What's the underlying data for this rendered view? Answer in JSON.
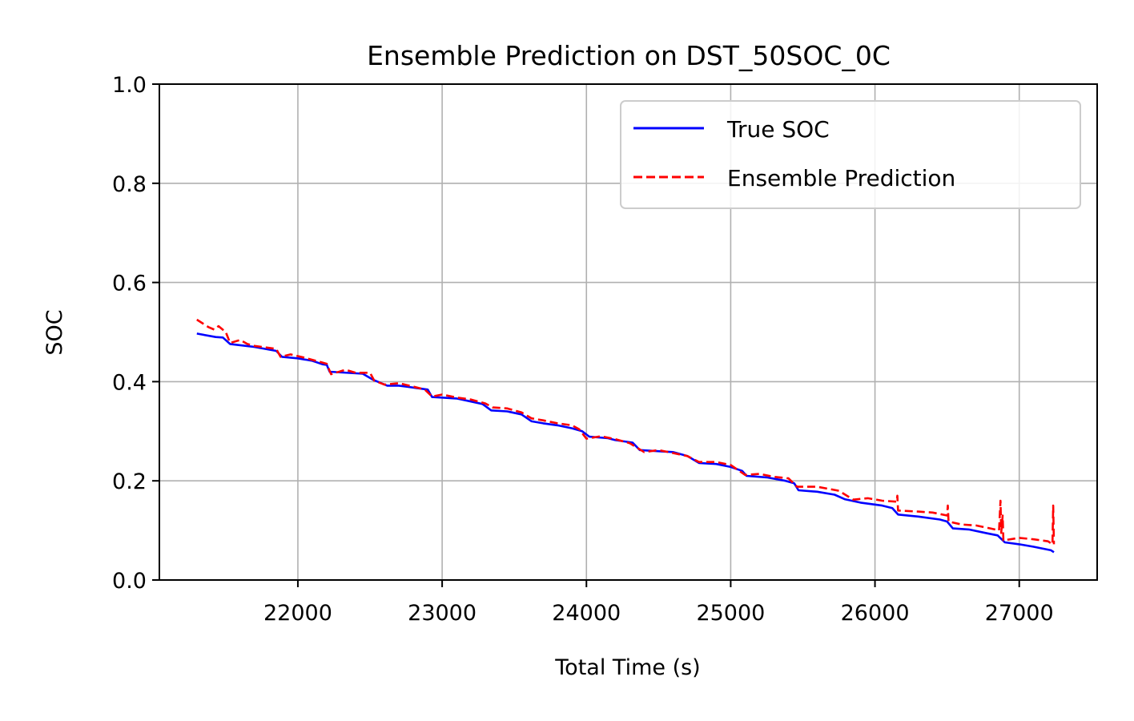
{
  "chart_data": {
    "type": "line",
    "title": "Ensemble Prediction on DST_50SOC_0C",
    "xlabel": "Total Time (s)",
    "ylabel": "SOC",
    "xlim": [
      21040,
      27540
    ],
    "ylim": [
      0.0,
      1.0
    ],
    "x_ticks": [
      22000,
      23000,
      24000,
      25000,
      26000,
      27000
    ],
    "x_tick_labels": [
      "22000",
      "23000",
      "24000",
      "25000",
      "26000",
      "27000"
    ],
    "y_ticks": [
      0.0,
      0.2,
      0.4,
      0.6,
      0.8,
      1.0
    ],
    "y_tick_labels": [
      "0.0",
      "0.2",
      "0.4",
      "0.6",
      "0.8",
      "1.0"
    ],
    "grid": true,
    "legend_position": "top-right",
    "series": [
      {
        "name": "True SOC",
        "color": "#0000ff",
        "style": "solid",
        "points": [
          [
            21300,
            0.497
          ],
          [
            21430,
            0.49
          ],
          [
            21480,
            0.489
          ],
          [
            21530,
            0.476
          ],
          [
            21700,
            0.47
          ],
          [
            21850,
            0.462
          ],
          [
            21890,
            0.45
          ],
          [
            22000,
            0.447
          ],
          [
            22100,
            0.442
          ],
          [
            22170,
            0.435
          ],
          [
            22200,
            0.434
          ],
          [
            22220,
            0.42
          ],
          [
            22450,
            0.416
          ],
          [
            22520,
            0.404
          ],
          [
            22620,
            0.392
          ],
          [
            22700,
            0.392
          ],
          [
            22800,
            0.388
          ],
          [
            22900,
            0.384
          ],
          [
            22930,
            0.369
          ],
          [
            23100,
            0.366
          ],
          [
            23200,
            0.36
          ],
          [
            23280,
            0.355
          ],
          [
            23340,
            0.342
          ],
          [
            23450,
            0.34
          ],
          [
            23550,
            0.334
          ],
          [
            23620,
            0.32
          ],
          [
            23700,
            0.316
          ],
          [
            23800,
            0.312
          ],
          [
            23900,
            0.306
          ],
          [
            23970,
            0.3
          ],
          [
            24020,
            0.289
          ],
          [
            24150,
            0.286
          ],
          [
            24200,
            0.282
          ],
          [
            24320,
            0.277
          ],
          [
            24370,
            0.262
          ],
          [
            24600,
            0.258
          ],
          [
            24700,
            0.25
          ],
          [
            24780,
            0.236
          ],
          [
            24900,
            0.234
          ],
          [
            25000,
            0.228
          ],
          [
            25080,
            0.22
          ],
          [
            25110,
            0.21
          ],
          [
            25250,
            0.207
          ],
          [
            25380,
            0.2
          ],
          [
            25440,
            0.195
          ],
          [
            25470,
            0.181
          ],
          [
            25600,
            0.178
          ],
          [
            25720,
            0.172
          ],
          [
            25790,
            0.163
          ],
          [
            25900,
            0.156
          ],
          [
            26050,
            0.15
          ],
          [
            26120,
            0.145
          ],
          [
            26160,
            0.132
          ],
          [
            26300,
            0.128
          ],
          [
            26450,
            0.122
          ],
          [
            26500,
            0.118
          ],
          [
            26540,
            0.104
          ],
          [
            26650,
            0.102
          ],
          [
            26780,
            0.094
          ],
          [
            26850,
            0.09
          ],
          [
            26900,
            0.076
          ],
          [
            27000,
            0.072
          ],
          [
            27100,
            0.067
          ],
          [
            27220,
            0.06
          ],
          [
            27240,
            0.056
          ]
        ]
      },
      {
        "name": "Ensemble Prediction",
        "color": "#ff0000",
        "style": "dashed",
        "points": [
          [
            21300,
            0.525
          ],
          [
            21380,
            0.51
          ],
          [
            21420,
            0.505
          ],
          [
            21450,
            0.512
          ],
          [
            21500,
            0.5
          ],
          [
            21530,
            0.478
          ],
          [
            21600,
            0.484
          ],
          [
            21650,
            0.476
          ],
          [
            21700,
            0.472
          ],
          [
            21850,
            0.466
          ],
          [
            21880,
            0.45
          ],
          [
            21950,
            0.455
          ],
          [
            22050,
            0.448
          ],
          [
            22150,
            0.44
          ],
          [
            22200,
            0.436
          ],
          [
            22230,
            0.415
          ],
          [
            22330,
            0.424
          ],
          [
            22400,
            0.418
          ],
          [
            22500,
            0.418
          ],
          [
            22530,
            0.402
          ],
          [
            22600,
            0.394
          ],
          [
            22700,
            0.397
          ],
          [
            22800,
            0.39
          ],
          [
            22880,
            0.384
          ],
          [
            22930,
            0.37
          ],
          [
            23000,
            0.374
          ],
          [
            23100,
            0.368
          ],
          [
            23200,
            0.364
          ],
          [
            23300,
            0.356
          ],
          [
            23350,
            0.348
          ],
          [
            23450,
            0.346
          ],
          [
            23550,
            0.338
          ],
          [
            23620,
            0.326
          ],
          [
            23700,
            0.322
          ],
          [
            23800,
            0.316
          ],
          [
            23900,
            0.312
          ],
          [
            23950,
            0.304
          ],
          [
            24000,
            0.285
          ],
          [
            24100,
            0.29
          ],
          [
            24200,
            0.284
          ],
          [
            24300,
            0.276
          ],
          [
            24400,
            0.258
          ],
          [
            24500,
            0.262
          ],
          [
            24600,
            0.256
          ],
          [
            24700,
            0.25
          ],
          [
            24780,
            0.238
          ],
          [
            24900,
            0.238
          ],
          [
            25000,
            0.232
          ],
          [
            25100,
            0.212
          ],
          [
            25200,
            0.214
          ],
          [
            25300,
            0.208
          ],
          [
            25400,
            0.205
          ],
          [
            25460,
            0.188
          ],
          [
            25600,
            0.188
          ],
          [
            25750,
            0.18
          ],
          [
            25850,
            0.162
          ],
          [
            25950,
            0.165
          ],
          [
            26050,
            0.16
          ],
          [
            26150,
            0.158
          ],
          [
            26155,
            0.17
          ],
          [
            26160,
            0.14
          ],
          [
            26300,
            0.138
          ],
          [
            26400,
            0.136
          ],
          [
            26500,
            0.13
          ],
          [
            26505,
            0.15
          ],
          [
            26510,
            0.118
          ],
          [
            26600,
            0.112
          ],
          [
            26700,
            0.11
          ],
          [
            26800,
            0.104
          ],
          [
            26860,
            0.1
          ],
          [
            26870,
            0.16
          ],
          [
            26875,
            0.095
          ],
          [
            26885,
            0.13
          ],
          [
            26890,
            0.08
          ],
          [
            27000,
            0.085
          ],
          [
            27100,
            0.082
          ],
          [
            27200,
            0.078
          ],
          [
            27230,
            0.072
          ],
          [
            27235,
            0.15
          ],
          [
            27240,
            0.072
          ]
        ]
      }
    ]
  }
}
